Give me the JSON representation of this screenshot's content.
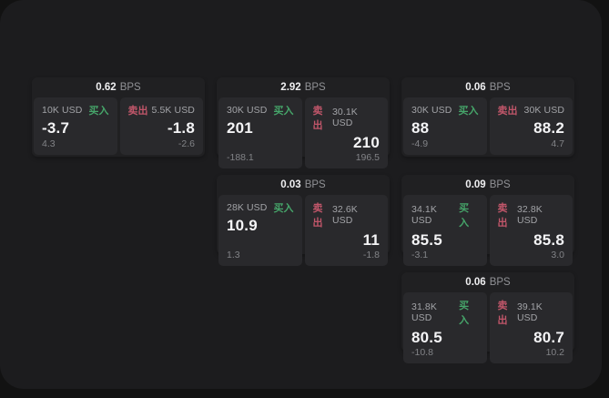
{
  "labels": {
    "bps_unit": "BPS",
    "buy": "买入",
    "sell": "卖出"
  },
  "colors": {
    "page_bg": "#121212",
    "panel_bg": "#1c1c1e",
    "card_bg": "#202022",
    "cell_bg": "#29292c",
    "buy_green": "#46a56a",
    "sell_red": "#c1566a"
  },
  "cards": [
    {
      "bps": "0.62",
      "buy": {
        "amount": "10K USD",
        "price": "-3.7",
        "sub": "4.3"
      },
      "sell": {
        "amount": "5.5K USD",
        "price": "-1.8",
        "sub": "-2.6"
      }
    },
    {
      "bps": "2.92",
      "buy": {
        "amount": "30K USD",
        "price": "201",
        "sub": "-188.1"
      },
      "sell": {
        "amount": "30.1K USD",
        "price": "210",
        "sub": "196.5"
      }
    },
    {
      "bps": "0.06",
      "buy": {
        "amount": "30K USD",
        "price": "88",
        "sub": "-4.9"
      },
      "sell": {
        "amount": "30K USD",
        "price": "88.2",
        "sub": "4.7"
      }
    },
    {
      "bps": "0.03",
      "buy": {
        "amount": "28K USD",
        "price": "10.9",
        "sub": "1.3"
      },
      "sell": {
        "amount": "32.6K USD",
        "price": "11",
        "sub": "-1.8"
      }
    },
    {
      "bps": "0.09",
      "buy": {
        "amount": "34.1K USD",
        "price": "85.5",
        "sub": "-3.1"
      },
      "sell": {
        "amount": "32.8K USD",
        "price": "85.8",
        "sub": "3.0"
      }
    },
    {
      "bps": "0.06",
      "buy": {
        "amount": "31.8K USD",
        "price": "80.5",
        "sub": "-10.8"
      },
      "sell": {
        "amount": "39.1K USD",
        "price": "80.7",
        "sub": "10.2"
      }
    }
  ]
}
